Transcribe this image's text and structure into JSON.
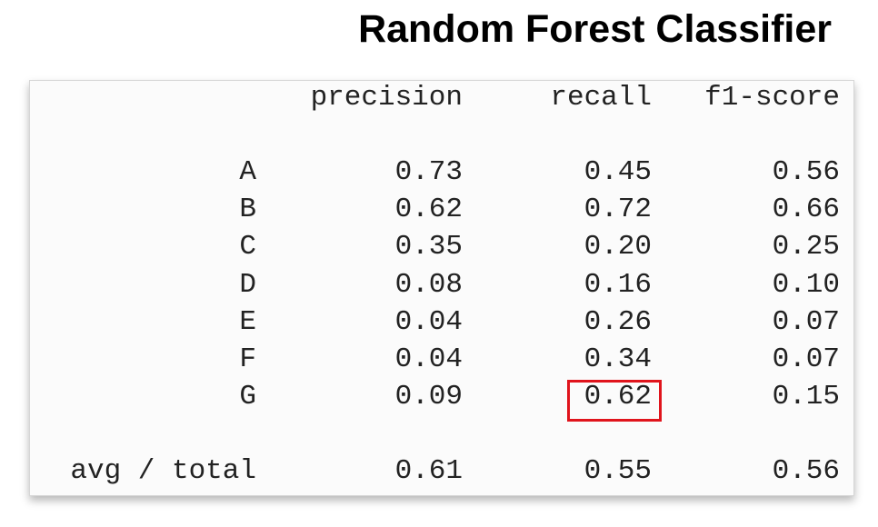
{
  "chart_data": {
    "type": "table",
    "title": "Random Forest Classifier",
    "columns": [
      "precision",
      "recall",
      "f1-score"
    ],
    "rows": [
      {
        "label": "A",
        "values": [
          "0.73",
          "0.45",
          "0.56"
        ]
      },
      {
        "label": "B",
        "values": [
          "0.62",
          "0.72",
          "0.66"
        ]
      },
      {
        "label": "C",
        "values": [
          "0.35",
          "0.20",
          "0.25"
        ]
      },
      {
        "label": "D",
        "values": [
          "0.08",
          "0.16",
          "0.10"
        ]
      },
      {
        "label": "E",
        "values": [
          "0.04",
          "0.26",
          "0.07"
        ]
      },
      {
        "label": "F",
        "values": [
          "0.04",
          "0.34",
          "0.07"
        ]
      },
      {
        "label": "G",
        "values": [
          "0.09",
          "0.62",
          "0.15"
        ]
      }
    ],
    "summary": {
      "label": "avg / total",
      "values": [
        "0.61",
        "0.55",
        "0.56"
      ]
    },
    "highlighted_cell": {
      "row": "G",
      "column": "recall"
    },
    "highlight_color": "#e0141c"
  }
}
